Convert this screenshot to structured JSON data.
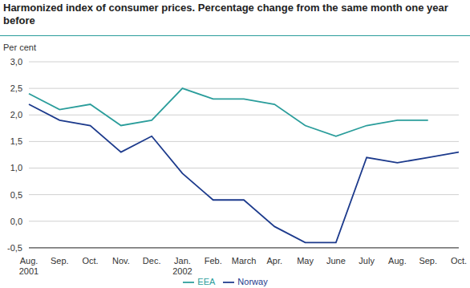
{
  "chart_data": {
    "type": "line",
    "title": "Harmonized index of consumer prices. Percentage change from the same month one year before",
    "ylabel": "Per cent",
    "categories": [
      "Aug. 2001",
      "Sep.",
      "Oct.",
      "Nov.",
      "Dec.",
      "Jan. 2002",
      "Feb.",
      "March",
      "Apr.",
      "May",
      "June",
      "July",
      "Aug.",
      "Sep.",
      "Oct."
    ],
    "series": [
      {
        "name": "EEA",
        "color": "#2a9d9b",
        "values": [
          2.4,
          2.1,
          2.2,
          1.8,
          1.9,
          2.5,
          2.3,
          2.3,
          2.2,
          1.8,
          1.6,
          1.8,
          1.9,
          1.9,
          null
        ]
      },
      {
        "name": "Norway",
        "color": "#1c3a8c",
        "values": [
          2.2,
          1.9,
          1.8,
          1.3,
          1.6,
          0.9,
          0.4,
          0.4,
          -0.1,
          -0.4,
          -0.4,
          1.2,
          1.1,
          1.2,
          1.3
        ]
      }
    ],
    "ylim": [
      -0.5,
      3.0
    ],
    "yticks": [
      {
        "value": -0.5,
        "label": "-0,5"
      },
      {
        "value": 0,
        "label": "0,0"
      },
      {
        "value": 0.5,
        "label": "0,5"
      },
      {
        "value": 1,
        "label": "1,0"
      },
      {
        "value": 1.5,
        "label": "1,5"
      },
      {
        "value": 2,
        "label": "2,0"
      },
      {
        "value": 2.5,
        "label": "2,5"
      },
      {
        "value": 3,
        "label": "3,0"
      }
    ],
    "grid": true,
    "legend": "bottom"
  }
}
